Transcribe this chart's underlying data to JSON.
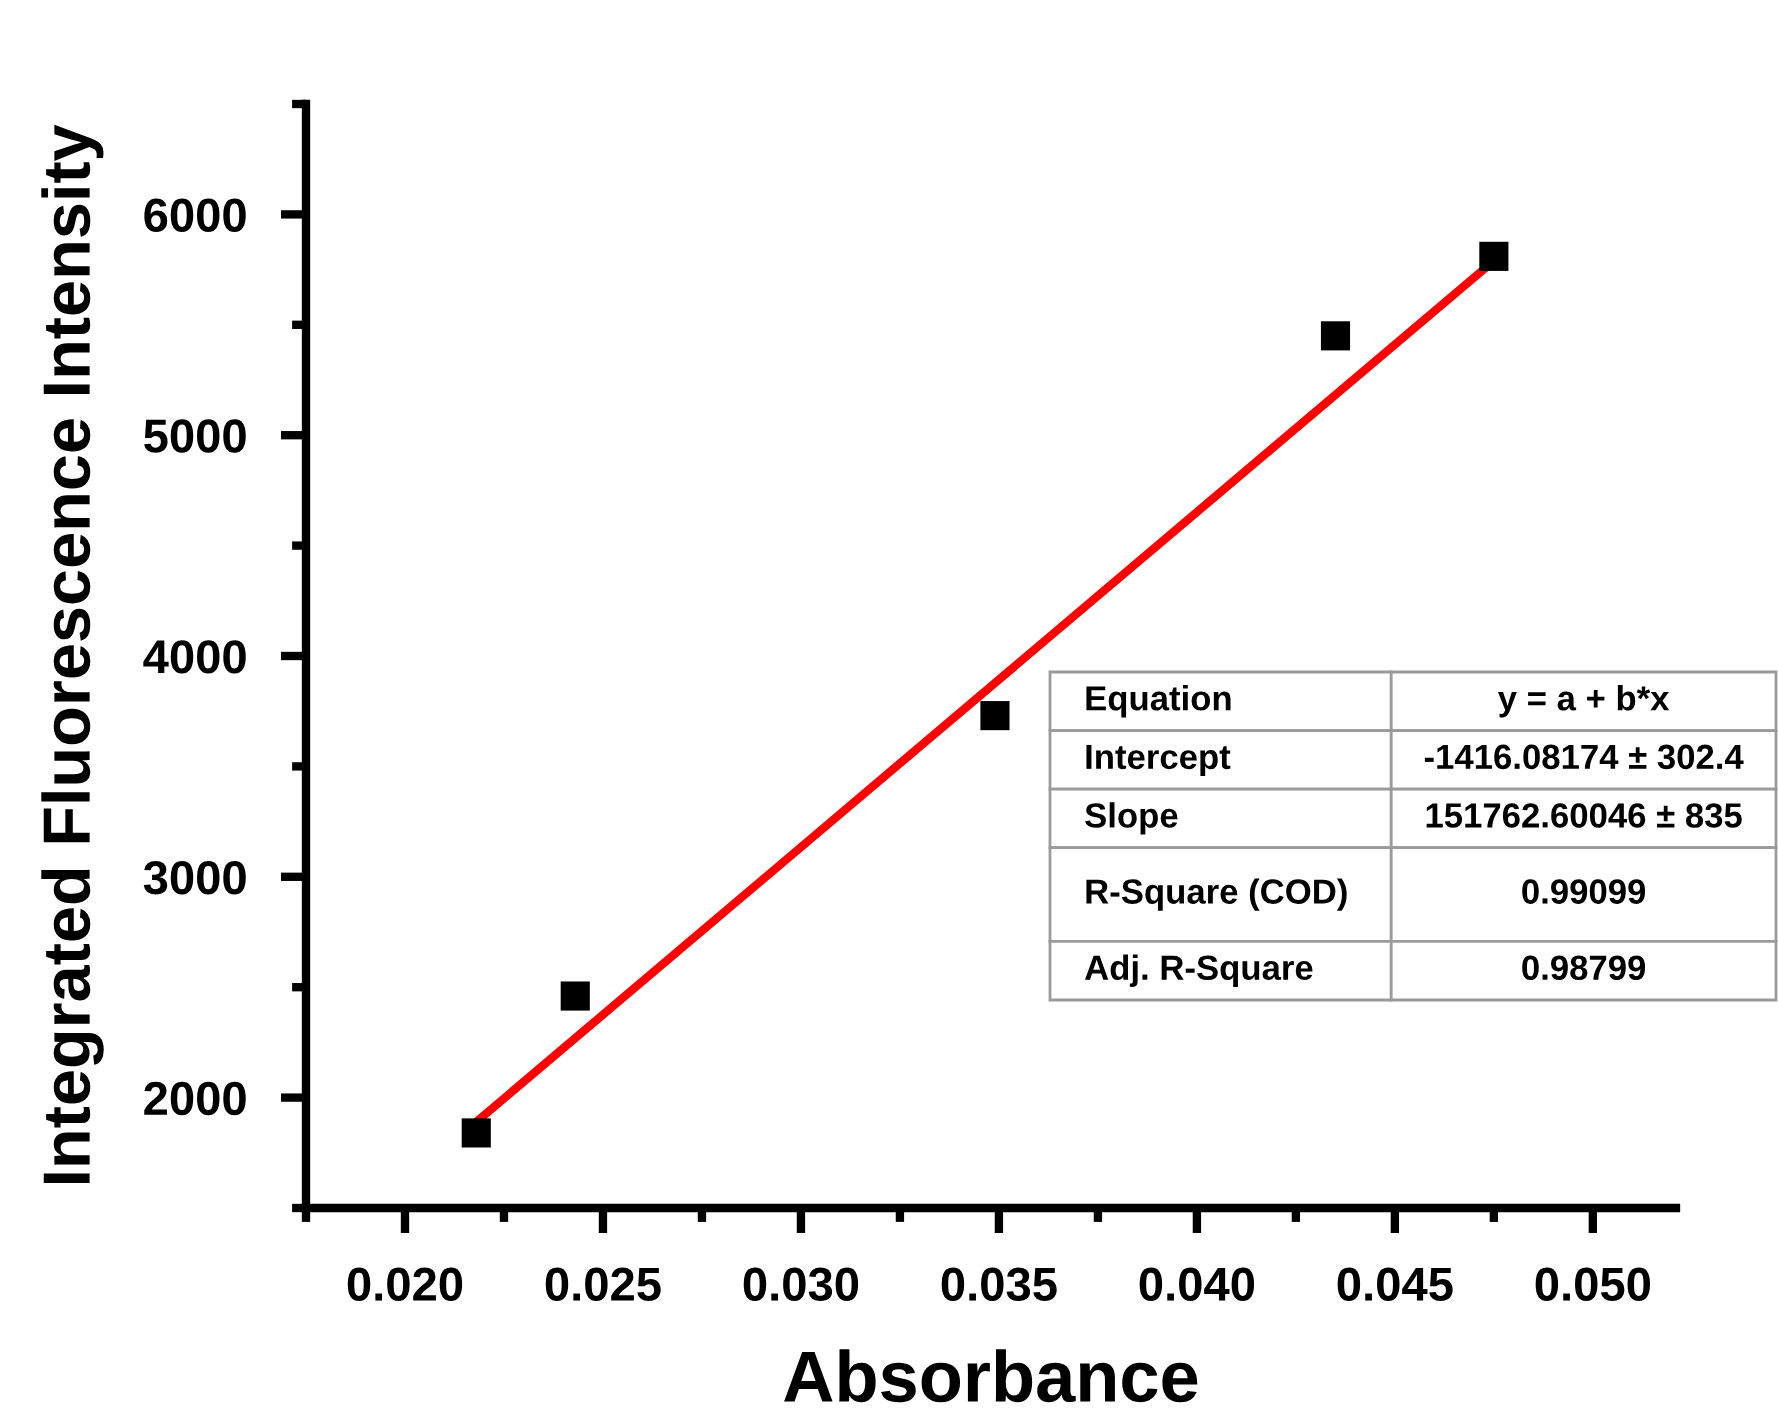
{
  "chart_data": {
    "type": "scatter",
    "xlabel": "Absorbance",
    "ylabel": "Integrated Fluorescence Intensity",
    "series": [
      {
        "color": "#000000",
        "marker": "square",
        "x": [
          0.0218,
          0.0243,
          0.0349,
          0.0435,
          0.0475
        ],
        "values": [
          1840,
          2460,
          3730,
          5450,
          5810
        ]
      },
      {
        "type": "line",
        "color": "#ff0000",
        "marker": "none",
        "line_style": "solid",
        "x": [
          0.0218,
          0.0475
        ],
        "values": [
          1890,
          5790
        ]
      }
    ],
    "xlim": [
      0.0175,
      0.0521
    ],
    "ylim": [
      1500,
      6500
    ],
    "xticks": [
      {
        "value": 0.02,
        "label": "0.020"
      },
      {
        "value": 0.025,
        "label": "0.025"
      },
      {
        "value": 0.03,
        "label": "0.030"
      },
      {
        "value": 0.035,
        "label": "0.035"
      },
      {
        "value": 0.04,
        "label": "0.040"
      },
      {
        "value": 0.045,
        "label": "0.045"
      },
      {
        "value": 0.05,
        "label": "0.050"
      }
    ],
    "yticks": [
      2000,
      3000,
      4000,
      5000,
      6000
    ],
    "grid": false,
    "legend": false,
    "annotations": [
      "Equation",
      "y = a + b*x",
      "Intercept",
      "-1416.08174 ± 302.4",
      "Slope",
      "151762.60046 ± 835",
      "R-Square (COD)",
      "0.99099",
      "Adj. R-Square",
      "0.98799"
    ]
  }
}
